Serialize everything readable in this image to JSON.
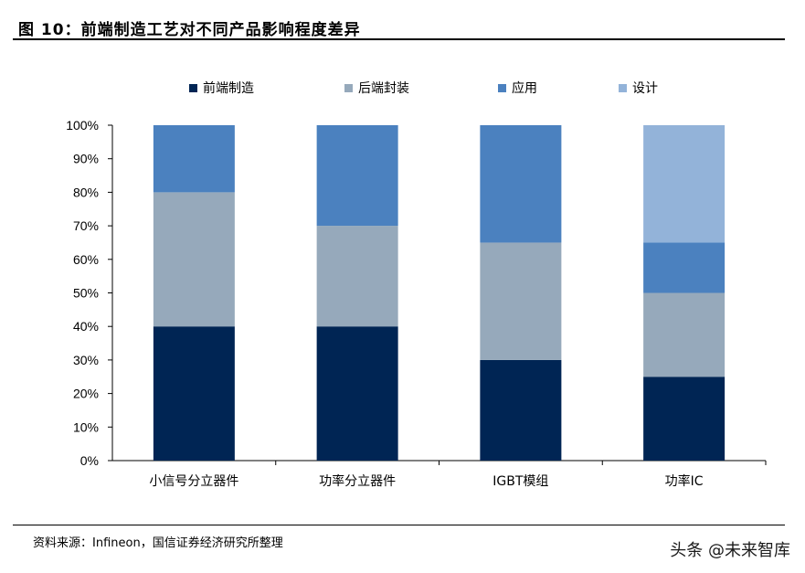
{
  "header": {
    "title": "图 10：前端制造工艺对不同产品影响程度差异"
  },
  "chart_data": {
    "type": "bar",
    "stacked": true,
    "title": "",
    "xlabel": "",
    "ylabel": "",
    "ylim": [
      0,
      100
    ],
    "yticks": [
      "0%",
      "10%",
      "20%",
      "30%",
      "40%",
      "50%",
      "60%",
      "70%",
      "80%",
      "90%",
      "100%"
    ],
    "categories": [
      "小信号分立器件",
      "功率分立器件",
      "IGBT模组",
      "功率IC"
    ],
    "series": [
      {
        "name": "前端制造",
        "color": "#002554",
        "values": [
          40,
          40,
          30,
          25
        ]
      },
      {
        "name": "后端封装",
        "color": "#96a9bb",
        "values": [
          40,
          30,
          35,
          25
        ]
      },
      {
        "name": "应用",
        "color": "#4b81bf",
        "values": [
          20,
          30,
          35,
          15
        ]
      },
      {
        "name": "设计",
        "color": "#93b3d9",
        "values": [
          0,
          0,
          0,
          35
        ]
      }
    ],
    "legend_position": "top",
    "grid": false
  },
  "footer": {
    "source": "资料来源：Infineon，国信证券经济研究所整理",
    "watermark": "头条 @未来智库"
  }
}
